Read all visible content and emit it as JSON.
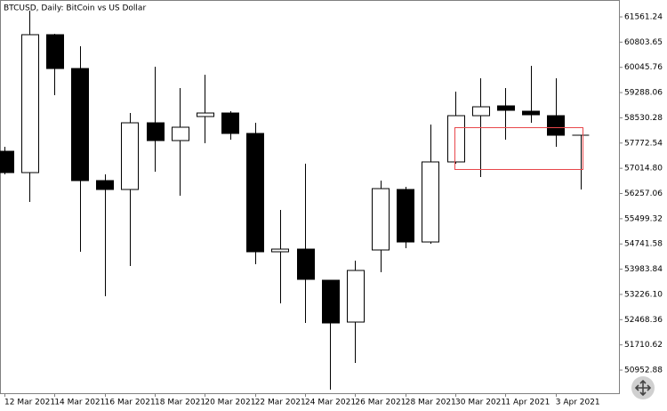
{
  "chart_data": {
    "type": "candlestick",
    "title": "BTCUSD, Daily:  BitCoin vs US Dollar",
    "categories": [
      "12 Mar 2021",
      null,
      "14 Mar 2021",
      null,
      "16 Mar 2021",
      null,
      "18 Mar 2021",
      null,
      "20 Mar 2021",
      null,
      "22 Mar 2021",
      null,
      "24 Mar 2021",
      null,
      "26 Mar 2021",
      null,
      "28 Mar 2021",
      null,
      "30 Mar 2021",
      null,
      "1 Apr 2021",
      null,
      "3 Apr 2021",
      null
    ],
    "open": [
      57526,
      56885,
      61027,
      60011,
      56645,
      56378,
      58381,
      57847,
      58569,
      58675,
      58061,
      54507,
      54587,
      53652,
      52396,
      54561,
      56378,
      54801,
      57206,
      58595,
      58889,
      58729,
      58595,
      58007
    ],
    "high": [
      57660,
      61748,
      61053,
      60679,
      56832,
      58675,
      60065,
      59424,
      59824,
      58729,
      58381,
      55763,
      57152,
      53652,
      54240,
      56645,
      56458,
      58328,
      59317,
      59717,
      59424,
      60092,
      59717,
      58007
    ],
    "low": [
      56832,
      56003,
      59210,
      54507,
      53171,
      54080,
      56912,
      56190,
      57767,
      57874,
      54133,
      52957,
      52369,
      50365,
      51167,
      53893,
      54614,
      54747,
      57152,
      56752,
      57874,
      58381,
      57660,
      56378
    ],
    "close": [
      56885,
      61027,
      60011,
      56645,
      56378,
      58381,
      57847,
      58248,
      58675,
      58061,
      54507,
      54587,
      53679,
      52369,
      53946,
      56404,
      54801,
      57206,
      58595,
      58862,
      58756,
      58622,
      58007,
      58007
    ],
    "up_color": "#ffffff",
    "down_color": "#000000",
    "ylim": [
      50259,
      62069
    ],
    "yticks": [
      61561.24,
      60803.65,
      60045.76,
      59288.06,
      58530.28,
      57772.54,
      {
        "value": 57014.8,
        "label": "57014.80"
      },
      56257.06,
      55499.32,
      54741.58,
      53983.84,
      {
        "value": 53226.1,
        "label": "53226.10"
      },
      52468.36,
      51710.62,
      50952.88
    ]
  }
}
